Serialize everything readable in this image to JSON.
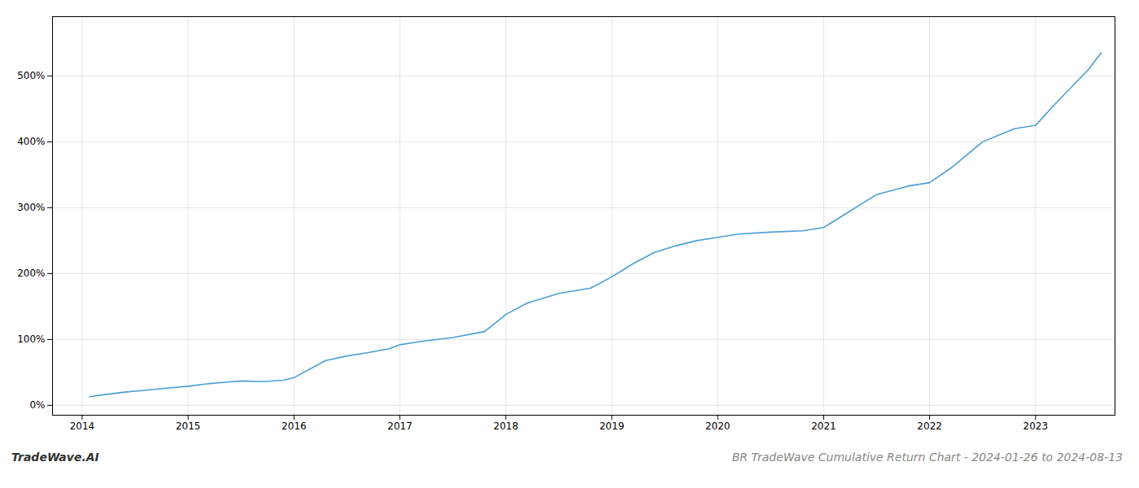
{
  "chart_data": {
    "type": "line",
    "title": "BR TradeWave Cumulative Return Chart - 2024-01-26 to 2024-08-13",
    "annotations": [
      "TradeWave.AI"
    ],
    "x": [
      2014.07,
      2014.2,
      2014.4,
      2014.6,
      2014.8,
      2015.0,
      2015.2,
      2015.35,
      2015.5,
      2015.7,
      2015.9,
      2016.0,
      2016.15,
      2016.3,
      2016.5,
      2016.7,
      2016.9,
      2017.0,
      2017.2,
      2017.5,
      2017.8,
      2018.0,
      2018.2,
      2018.5,
      2018.8,
      2019.0,
      2019.2,
      2019.4,
      2019.6,
      2019.8,
      2020.0,
      2020.2,
      2020.5,
      2020.8,
      2021.0,
      2021.2,
      2021.5,
      2021.8,
      2022.0,
      2022.2,
      2022.5,
      2022.8,
      2023.0,
      2023.2,
      2023.5,
      2023.62
    ],
    "values": [
      13,
      16,
      20,
      23,
      26,
      29,
      33,
      35,
      37,
      36,
      38,
      42,
      55,
      68,
      75,
      80,
      86,
      92,
      97,
      103,
      112,
      138,
      155,
      170,
      178,
      195,
      215,
      232,
      242,
      250,
      255,
      260,
      263,
      265,
      270,
      290,
      320,
      333,
      338,
      360,
      400,
      420,
      425,
      460,
      510,
      535
    ],
    "color": "#4a9fd4",
    "xlim": [
      2013.72,
      2023.75
    ],
    "ylim": [
      -15,
      590
    ],
    "xticks": [
      2014,
      2015,
      2016,
      2017,
      2018,
      2019,
      2020,
      2021,
      2022,
      2023
    ],
    "yticks": [
      {
        "value": 0,
        "label": "0%"
      },
      {
        "value": 100,
        "label": "100%"
      },
      {
        "value": 200,
        "label": "200%"
      },
      {
        "value": 300,
        "label": "300%"
      },
      {
        "value": 400,
        "label": "400%"
      },
      {
        "value": 500,
        "label": "500%"
      }
    ],
    "grid": true
  }
}
